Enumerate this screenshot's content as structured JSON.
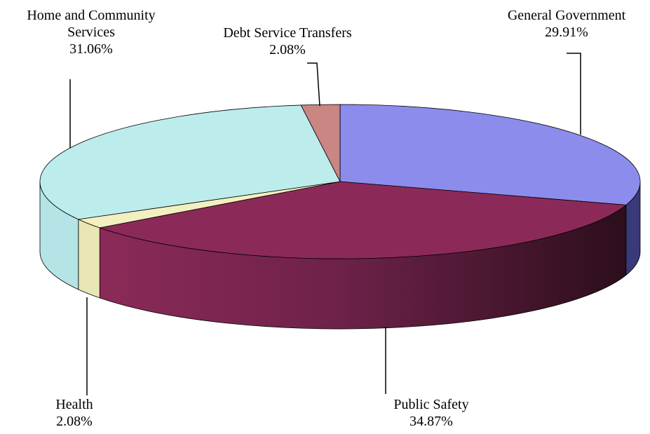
{
  "chart_data": {
    "type": "pie",
    "style": "3d",
    "slices": [
      {
        "name": "General Government",
        "label_lines": [
          "General Government"
        ],
        "percent_label": "29.91%",
        "value": 29.91,
        "color": "#8c8cec",
        "side_color": "#3a3a78"
      },
      {
        "name": "Public Safety",
        "label_lines": [
          "Public Safety"
        ],
        "percent_label": "34.87%",
        "value": 34.87,
        "color": "#8b2a58",
        "side_color": "#8b2a58"
      },
      {
        "name": "Health",
        "label_lines": [
          "Health"
        ],
        "percent_label": "2.08%",
        "value": 2.08,
        "color": "#f2f0c0",
        "side_color": "#e8e6b4"
      },
      {
        "name": "Home and Community Services",
        "label_lines": [
          "Home and Community",
          "Services"
        ],
        "percent_label": "31.06%",
        "value": 31.06,
        "color": "#bdecec",
        "side_color": "#b4e4e6"
      },
      {
        "name": "Debt Service Transfers",
        "label_lines": [
          "Debt Service Transfers"
        ],
        "percent_label": "2.08%",
        "value": 2.08,
        "color": "#c98682",
        "side_color": "#b87470"
      }
    ]
  }
}
